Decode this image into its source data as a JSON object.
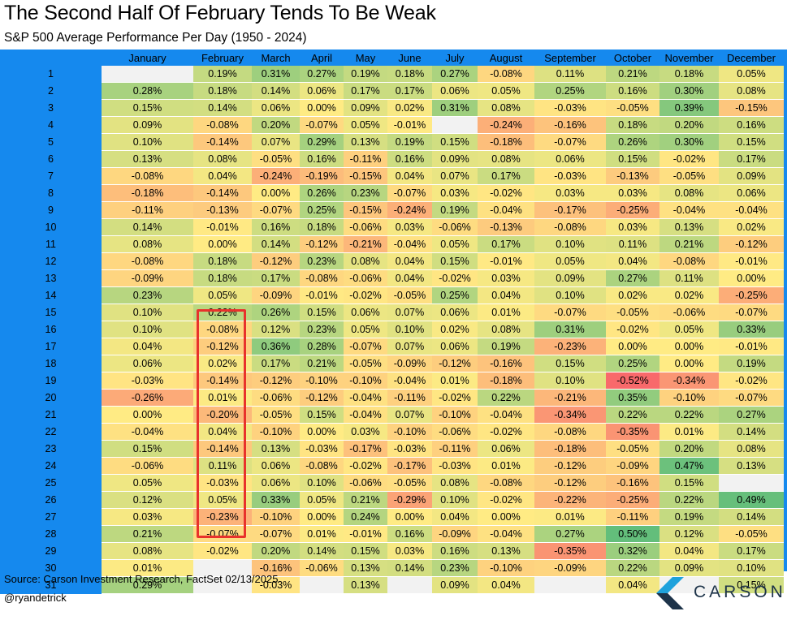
{
  "title": "The Second Half Of February Tends To Be Weak",
  "subtitle": "S&P 500 Average Performance Per Day (1950 - 2024)",
  "source": "Source: Carson Investment Research, FactSet 02/13/2025",
  "handle": "@ryandetrick",
  "logo_text": "CARSON",
  "colors": {
    "day_column_bg": "#1589ee",
    "highlight_border": "#e8322c",
    "logo_text": "#1d3349",
    "logo_mark_light": "#1fa2dc",
    "logo_mark_dark": "#1d3349",
    "scale_negative": "#f8696b",
    "scale_neutral": "#ffeb84",
    "scale_positive": "#63be7b",
    "empty_cell": "#f2f2f2"
  },
  "highlight": {
    "month": "February",
    "from_day": 16,
    "to_day": 29
  },
  "chart_data": {
    "type": "heatmap",
    "title": "The Second Half Of February Tends To Be Weak",
    "subtitle": "S&P 500 Average Performance Per Day (1950 - 2024)",
    "unit": "%",
    "columns": [
      "January",
      "February",
      "March",
      "April",
      "May",
      "June",
      "July",
      "August",
      "September",
      "October",
      "November",
      "December"
    ],
    "rows": [
      "1",
      "2",
      "3",
      "4",
      "5",
      "6",
      "7",
      "8",
      "9",
      "10",
      "11",
      "12",
      "13",
      "14",
      "15",
      "16",
      "17",
      "18",
      "19",
      "20",
      "21",
      "22",
      "23",
      "24",
      "25",
      "26",
      "27",
      "28",
      "29",
      "30",
      "31"
    ],
    "values": [
      [
        null,
        0.19,
        0.31,
        0.27,
        0.19,
        0.18,
        0.27,
        -0.08,
        0.11,
        0.21,
        0.18,
        0.05
      ],
      [
        0.28,
        0.18,
        0.14,
        0.06,
        0.17,
        0.17,
        0.06,
        0.05,
        0.25,
        0.16,
        0.3,
        0.08
      ],
      [
        0.15,
        0.14,
        0.06,
        0.0,
        0.09,
        0.02,
        0.31,
        0.08,
        -0.03,
        -0.05,
        0.39,
        -0.15
      ],
      [
        0.09,
        -0.08,
        0.2,
        -0.07,
        0.05,
        -0.01,
        null,
        -0.24,
        -0.16,
        0.18,
        0.2,
        0.16
      ],
      [
        0.1,
        -0.14,
        0.07,
        0.29,
        0.13,
        0.19,
        0.15,
        -0.18,
        -0.07,
        0.26,
        0.3,
        0.15
      ],
      [
        0.13,
        0.08,
        -0.05,
        0.16,
        -0.11,
        0.16,
        0.09,
        0.08,
        0.06,
        0.15,
        -0.02,
        0.17
      ],
      [
        -0.08,
        0.04,
        -0.24,
        -0.19,
        -0.15,
        0.04,
        0.07,
        0.17,
        -0.03,
        -0.13,
        -0.05,
        0.09
      ],
      [
        -0.18,
        -0.14,
        0.0,
        0.26,
        0.23,
        -0.07,
        0.03,
        -0.02,
        0.03,
        0.03,
        0.08,
        0.06
      ],
      [
        -0.11,
        -0.13,
        -0.07,
        0.25,
        -0.15,
        -0.24,
        0.19,
        -0.04,
        -0.17,
        -0.25,
        -0.04,
        -0.04
      ],
      [
        0.14,
        -0.01,
        0.16,
        0.18,
        -0.06,
        0.03,
        -0.06,
        -0.13,
        -0.08,
        0.03,
        0.13,
        0.02
      ],
      [
        0.08,
        0.0,
        0.14,
        -0.12,
        -0.21,
        -0.04,
        0.05,
        0.17,
        0.1,
        0.11,
        0.21,
        -0.12
      ],
      [
        -0.08,
        0.18,
        -0.12,
        0.23,
        0.08,
        0.04,
        0.15,
        -0.01,
        0.05,
        0.04,
        -0.08,
        -0.01
      ],
      [
        -0.09,
        0.18,
        0.17,
        -0.08,
        -0.06,
        0.04,
        -0.02,
        0.03,
        0.09,
        0.27,
        0.11,
        0.0
      ],
      [
        0.23,
        0.05,
        -0.09,
        -0.01,
        -0.02,
        -0.05,
        0.25,
        0.04,
        0.1,
        0.02,
        0.02,
        -0.25
      ],
      [
        0.1,
        0.22,
        0.26,
        0.15,
        0.06,
        0.07,
        0.06,
        0.01,
        -0.07,
        -0.05,
        -0.06,
        -0.07
      ],
      [
        0.1,
        -0.08,
        0.12,
        0.23,
        0.05,
        0.1,
        0.02,
        0.08,
        0.31,
        -0.02,
        0.05,
        0.33
      ],
      [
        0.04,
        -0.12,
        0.36,
        0.28,
        -0.07,
        0.07,
        0.06,
        0.19,
        -0.23,
        0.0,
        0.0,
        -0.01
      ],
      [
        0.06,
        0.02,
        0.17,
        0.21,
        -0.05,
        -0.09,
        -0.12,
        -0.16,
        0.15,
        0.25,
        0.0,
        0.19
      ],
      [
        -0.03,
        -0.14,
        -0.12,
        -0.1,
        -0.1,
        -0.04,
        0.01,
        -0.18,
        0.1,
        -0.52,
        -0.34,
        -0.02
      ],
      [
        -0.26,
        0.01,
        -0.06,
        -0.12,
        -0.04,
        -0.11,
        -0.02,
        0.22,
        -0.21,
        0.35,
        -0.1,
        -0.07
      ],
      [
        0.0,
        -0.2,
        -0.05,
        0.15,
        -0.04,
        0.07,
        -0.1,
        -0.04,
        -0.34,
        0.22,
        0.22,
        0.27
      ],
      [
        -0.04,
        0.04,
        -0.1,
        0.0,
        0.03,
        -0.1,
        -0.06,
        -0.02,
        -0.08,
        -0.35,
        0.01,
        0.14
      ],
      [
        0.15,
        -0.14,
        0.13,
        -0.03,
        -0.17,
        -0.03,
        -0.11,
        0.06,
        -0.18,
        -0.05,
        0.2,
        0.08
      ],
      [
        -0.06,
        0.11,
        0.06,
        -0.08,
        -0.02,
        -0.17,
        -0.03,
        0.01,
        -0.12,
        -0.09,
        0.47,
        0.13
      ],
      [
        0.05,
        -0.03,
        0.06,
        0.1,
        -0.06,
        -0.05,
        0.08,
        -0.08,
        -0.12,
        -0.16,
        0.15,
        null
      ],
      [
        0.12,
        0.05,
        0.33,
        0.05,
        0.21,
        -0.29,
        0.1,
        -0.02,
        -0.22,
        -0.25,
        0.22,
        0.49
      ],
      [
        0.03,
        -0.23,
        -0.1,
        0.0,
        0.24,
        0.0,
        0.04,
        0.0,
        0.01,
        -0.11,
        0.19,
        0.14
      ],
      [
        0.21,
        -0.07,
        -0.07,
        0.01,
        -0.01,
        0.16,
        -0.09,
        -0.04,
        0.27,
        0.5,
        0.12,
        -0.05
      ],
      [
        0.08,
        -0.02,
        0.2,
        0.14,
        0.15,
        0.03,
        0.16,
        0.13,
        -0.35,
        0.32,
        0.04,
        0.17
      ],
      [
        0.01,
        null,
        -0.16,
        -0.06,
        0.13,
        0.14,
        0.23,
        -0.1,
        -0.09,
        0.22,
        0.09,
        0.1
      ],
      [
        0.29,
        null,
        -0.03,
        null,
        0.13,
        null,
        0.09,
        0.04,
        null,
        0.04,
        null,
        0.15
      ]
    ],
    "color_scale": {
      "min": -0.52,
      "mid": 0.0,
      "max": 0.5
    },
    "legend": "none"
  }
}
